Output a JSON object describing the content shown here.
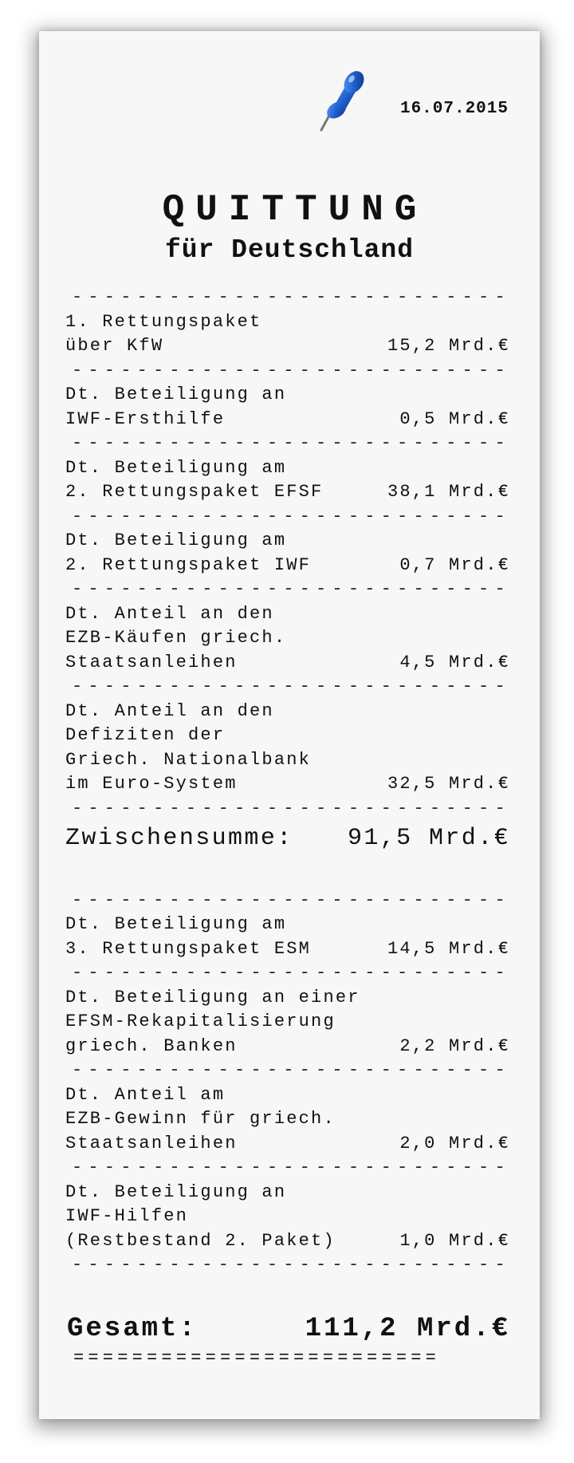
{
  "date": "16.07.2015",
  "title": "QUITTUNG",
  "subtitle": "für Deutschland",
  "separator": "----------------------------",
  "double_separator": "=========================",
  "items_part1": [
    {
      "lines": [
        "1. Rettungspaket",
        "über KfW"
      ],
      "amount": "15,2 Mrd.€"
    },
    {
      "lines": [
        "Dt. Beteiligung an",
        "IWF-Ersthilfe"
      ],
      "amount": "0,5 Mrd.€"
    },
    {
      "lines": [
        "Dt. Beteiligung am",
        "2. Rettungspaket EFSF"
      ],
      "amount": "38,1 Mrd.€"
    },
    {
      "lines": [
        "Dt. Beteiligung am",
        "2. Rettungspaket IWF"
      ],
      "amount": "0,7 Mrd.€"
    },
    {
      "lines": [
        "Dt. Anteil an den",
        "EZB-Käufen griech.",
        "Staatsanleihen"
      ],
      "amount": "4,5 Mrd.€"
    },
    {
      "lines": [
        "Dt. Anteil an den",
        "Defiziten der",
        "Griech. Nationalbank",
        "im Euro-System"
      ],
      "amount": "32,5 Mrd.€"
    }
  ],
  "subtotal": {
    "label": "Zwischensumme:",
    "value": "91,5 Mrd.€"
  },
  "items_part2": [
    {
      "lines": [
        "Dt. Beteiligung am",
        "3. Rettungspaket ESM"
      ],
      "amount": "14,5 Mrd.€"
    },
    {
      "lines": [
        "Dt. Beteiligung an einer",
        "EFSM-Rekapitalisierung",
        "griech. Banken"
      ],
      "amount": "2,2 Mrd.€"
    },
    {
      "lines": [
        "Dt. Anteil am",
        "EZB-Gewinn für griech.",
        "Staatsanleihen"
      ],
      "amount": "2,0 Mrd.€"
    },
    {
      "lines": [
        "Dt. Beteiligung an",
        "IWF-Hilfen",
        "(Restbestand 2. Paket)"
      ],
      "amount": "1,0 Mrd.€"
    }
  ],
  "total": {
    "label": "Gesamt:",
    "value": "111,2 Mrd.€"
  },
  "colors": {
    "paper": "#f7f7f7",
    "pin": "#1f5fd0",
    "text": "#111111"
  },
  "icons": {
    "pin": "pushpin-icon"
  }
}
